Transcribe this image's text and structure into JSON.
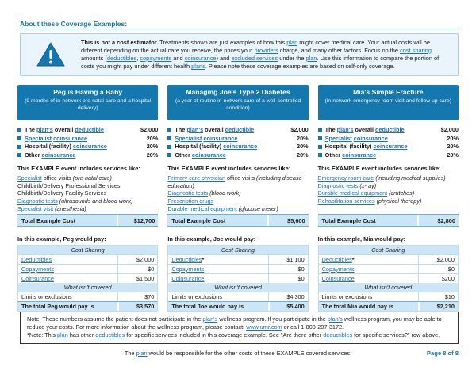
{
  "colors": {
    "header_blue": "#1478ae",
    "link_blue": "#1a70c4",
    "light_blue_row": "#cde6f7",
    "page_number_blue": "#1478ae"
  },
  "section_title": "About these Coverage Examples:",
  "disclaimer": {
    "icon": "warning-triangle-icon",
    "segments": [
      {
        "t": "This is not a cost estimator.",
        "b": true
      },
      {
        "t": " Treatments shown are just examples of how this "
      },
      {
        "t": "plan",
        "link": true
      },
      {
        "t": " might cover medical care. Your actual costs will be different depending on the actual care you receive, the prices your "
      },
      {
        "t": "providers",
        "link": true
      },
      {
        "t": " charge, and many other factors. Focus on the "
      },
      {
        "t": "cost sharing",
        "link": true
      },
      {
        "t": " amounts ("
      },
      {
        "t": "deductibles",
        "link": true
      },
      {
        "t": ", "
      },
      {
        "t": "copayments",
        "link": true
      },
      {
        "t": " and "
      },
      {
        "t": "coinsurance",
        "link": true
      },
      {
        "t": ") and "
      },
      {
        "t": "excluded services",
        "link": true
      },
      {
        "t": " under the "
      },
      {
        "t": "plan",
        "link": true
      },
      {
        "t": ". Use this information to compare the portion of costs you might pay under different health "
      },
      {
        "t": "plans",
        "link": true
      },
      {
        "t": ". Please note these coverage examples are based on self-only coverage."
      }
    ]
  },
  "examples": [
    {
      "title": "Peg is Having a Baby",
      "subtitle": "(9 months of in-network pre-natal care and a hospital delivery)",
      "facts": [
        {
          "segments": [
            {
              "t": "The "
            },
            {
              "t": "plan's",
              "link": true
            },
            {
              "t": " overall "
            },
            {
              "t": "deductible",
              "link": true
            }
          ],
          "value": "$2,000"
        },
        {
          "segments": [
            {
              "t": "Specialist",
              "link": true
            },
            {
              "t": " "
            },
            {
              "t": "coinsurance",
              "link": true
            }
          ],
          "value": "20%"
        },
        {
          "segments": [
            {
              "t": "Hospital (facility) "
            },
            {
              "t": "coinsurance",
              "link": true
            }
          ],
          "value": "20%"
        },
        {
          "segments": [
            {
              "t": "Other "
            },
            {
              "t": "coinsurance",
              "link": true
            }
          ],
          "value": "20%"
        }
      ],
      "services_heading": "This EXAMPLE event includes services like:",
      "services": [
        {
          "segments": [
            {
              "t": "Specialist",
              "link": true
            },
            {
              "t": " office visits "
            },
            {
              "t": "(pre-natal care)",
              "i": true
            }
          ]
        },
        {
          "segments": [
            {
              "t": "Childbirth/Delivery Professional Services"
            }
          ]
        },
        {
          "segments": [
            {
              "t": "Childbirth/Delivery Facility Services"
            }
          ]
        },
        {
          "segments": [
            {
              "t": "Diagnostic tests",
              "link": true
            },
            {
              "t": " "
            },
            {
              "t": "(ultrasounds and blood work)",
              "i": true
            }
          ]
        },
        {
          "segments": [
            {
              "t": "Specialist visit",
              "link": true
            },
            {
              "t": " "
            },
            {
              "t": "(anesthesia)",
              "i": true
            }
          ]
        }
      ],
      "total_label": "Total Example Cost",
      "total_value": "$12,700",
      "pay_heading": "In this example, Peg would pay:",
      "table": {
        "cost_sharing_header": "Cost Sharing",
        "rows": [
          {
            "segments": [
              {
                "t": "Deductibles",
                "link": true
              }
            ],
            "value": "$2,000"
          },
          {
            "segments": [
              {
                "t": "Copayments",
                "link": true
              }
            ],
            "value": "$0"
          },
          {
            "segments": [
              {
                "t": "Coinsurance",
                "link": true
              }
            ],
            "value": "$1,500"
          }
        ],
        "not_covered_header": "What isn't covered",
        "limits_row": {
          "label": "Limits or exclusions",
          "value": "$70"
        },
        "total_row": {
          "label": "The total Peg would pay is",
          "value": "$3,570"
        }
      }
    },
    {
      "title": "Managing Joe's Type 2 Diabetes",
      "subtitle": "(a year of routine in-network care of a well-controlled condition)",
      "facts": [
        {
          "segments": [
            {
              "t": "The "
            },
            {
              "t": "plan's",
              "link": true
            },
            {
              "t": " overall "
            },
            {
              "t": "deductible",
              "link": true
            }
          ],
          "value": "$2,000"
        },
        {
          "segments": [
            {
              "t": "Specialist",
              "link": true
            },
            {
              "t": " "
            },
            {
              "t": "coinsurance",
              "link": true
            }
          ],
          "value": "20%"
        },
        {
          "segments": [
            {
              "t": "Hospital (facility) "
            },
            {
              "t": "coinsurance",
              "link": true
            }
          ],
          "value": "20%"
        },
        {
          "segments": [
            {
              "t": "Other "
            },
            {
              "t": "coinsurance",
              "link": true
            }
          ],
          "value": "20%"
        }
      ],
      "services_heading": "This EXAMPLE event includes services like:",
      "services": [
        {
          "segments": [
            {
              "t": "Primary care physician",
              "link": true
            },
            {
              "t": " office visits "
            },
            {
              "t": "(including disease education)",
              "i": true
            }
          ]
        },
        {
          "segments": [
            {
              "t": "Diagnostic tests",
              "link": true
            },
            {
              "t": " "
            },
            {
              "t": "(blood work)",
              "i": true
            }
          ]
        },
        {
          "segments": [
            {
              "t": "Prescription drugs",
              "link": true
            }
          ]
        },
        {
          "segments": [
            {
              "t": "Durable medical equipment",
              "link": true
            },
            {
              "t": " "
            },
            {
              "t": "(glucose meter)",
              "i": true
            }
          ]
        }
      ],
      "total_label": "Total Example Cost",
      "total_value": "$5,600",
      "pay_heading": "In this example, Joe would pay:",
      "table": {
        "cost_sharing_header": "Cost Sharing",
        "rows": [
          {
            "segments": [
              {
                "t": "Deductibles",
                "link": true
              },
              {
                "t": "*",
                "b": true
              }
            ],
            "value": "$1,100"
          },
          {
            "segments": [
              {
                "t": "Copayments",
                "link": true
              }
            ],
            "value": "$0"
          },
          {
            "segments": [
              {
                "t": "Coinsurance",
                "link": true
              }
            ],
            "value": "$0"
          }
        ],
        "not_covered_header": "What isn't covered",
        "limits_row": {
          "label": "Limits or exclusions",
          "value": "$4,300"
        },
        "total_row": {
          "label": "The total Joe would pay is",
          "value": "$5,400"
        }
      }
    },
    {
      "title": "Mia's Simple Fracture",
      "subtitle": "(in-network emergency room visit and follow up care)",
      "facts": [
        {
          "segments": [
            {
              "t": "The "
            },
            {
              "t": "plan's",
              "link": true
            },
            {
              "t": " overall "
            },
            {
              "t": "deductible",
              "link": true
            }
          ],
          "value": "$2,000"
        },
        {
          "segments": [
            {
              "t": "Specialist",
              "link": true
            },
            {
              "t": " "
            },
            {
              "t": "coinsurance",
              "link": true
            }
          ],
          "value": "20%"
        },
        {
          "segments": [
            {
              "t": "Hospital (facility) "
            },
            {
              "t": "coinsurance",
              "link": true
            }
          ],
          "value": "20%"
        },
        {
          "segments": [
            {
              "t": "Other "
            },
            {
              "t": "coinsurance",
              "link": true
            }
          ],
          "value": "20%"
        }
      ],
      "services_heading": "This EXAMPLE event includes services like:",
      "services": [
        {
          "segments": [
            {
              "t": "Emergency room care",
              "link": true
            },
            {
              "t": " "
            },
            {
              "t": "(including medical supplies)",
              "i": true
            }
          ]
        },
        {
          "segments": [
            {
              "t": "Diagnostic tests",
              "link": true
            },
            {
              "t": " "
            },
            {
              "t": "(x-ray)",
              "i": true
            }
          ]
        },
        {
          "segments": [
            {
              "t": "Durable medical equipment",
              "link": true
            },
            {
              "t": " "
            },
            {
              "t": "(crutches)",
              "i": true
            }
          ]
        },
        {
          "segments": [
            {
              "t": "Rehabilitation services",
              "link": true
            },
            {
              "t": " "
            },
            {
              "t": "(physical therapy)",
              "i": true
            }
          ]
        }
      ],
      "total_label": "Total Example Cost",
      "total_value": "$2,800",
      "pay_heading": "In this example, Mia would pay:",
      "table": {
        "cost_sharing_header": "Cost Sharing",
        "rows": [
          {
            "segments": [
              {
                "t": "Deductibles",
                "link": true
              },
              {
                "t": "*",
                "b": true
              }
            ],
            "value": "$2,000"
          },
          {
            "segments": [
              {
                "t": "Copayments",
                "link": true
              }
            ],
            "value": "$0"
          },
          {
            "segments": [
              {
                "t": "Coinsurance",
                "link": true
              }
            ],
            "value": "$200"
          }
        ],
        "not_covered_header": "What isn't covered",
        "limits_row": {
          "label": "Limits or exclusions",
          "value": "$10"
        },
        "total_row": {
          "label": "The total Mia would pay is",
          "value": "$2,210"
        }
      }
    }
  ],
  "notes": {
    "lines": [
      {
        "segments": [
          {
            "t": "Note: These numbers assume the patient does not participate in the "
          },
          {
            "t": "plan's",
            "link": true
          },
          {
            "t": " wellness program. If you participate in the "
          },
          {
            "t": "plan's",
            "link": true
          },
          {
            "t": " wellness program, you may be able to reduce your costs. For more information about the wellness program, please contact: "
          },
          {
            "t": "www.umr.com",
            "link": true
          },
          {
            "t": " or call 1-800-207-3172."
          }
        ]
      },
      {
        "segments": [
          {
            "t": "*Note: This "
          },
          {
            "t": "plan",
            "link": true
          },
          {
            "t": " has other "
          },
          {
            "t": "deductibles",
            "link": true
          },
          {
            "t": " for specific services included in this coverage example. See \"Are there other "
          },
          {
            "t": "deductibles",
            "link": true
          },
          {
            "t": " for specific services?\" row above."
          }
        ]
      }
    ]
  },
  "footer": {
    "segments": [
      {
        "t": "The "
      },
      {
        "t": "plan",
        "link": true
      },
      {
        "t": " would be responsible for the other costs of these EXAMPLE covered services."
      }
    ],
    "page_label": "Page 8 of 8"
  }
}
